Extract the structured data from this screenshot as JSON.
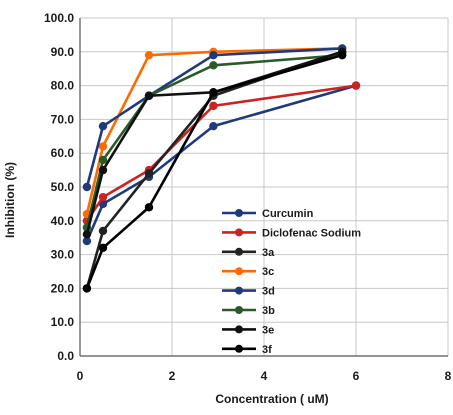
{
  "chart_data": {
    "type": "line",
    "title": "",
    "xlabel": "Concentration ( uM)",
    "ylabel": "Inhibition (%)",
    "xlim": [
      0,
      8
    ],
    "ylim": [
      0,
      100
    ],
    "x_ticks": [
      "0",
      "2",
      "4",
      "6",
      "8"
    ],
    "y_ticks": [
      "0.0",
      "10.0",
      "20.0",
      "30.0",
      "40.0",
      "50.0",
      "60.0",
      "70.0",
      "80.0",
      "90.0",
      "100.0"
    ],
    "grid": "horizontal and vertical",
    "legend_position": "bottom-right",
    "series": [
      {
        "name": "Curcumin",
        "color": "#1f3a7a",
        "x": [
          0.15,
          0.5,
          1.5,
          2.9,
          6.0
        ],
        "y": [
          34,
          45,
          53,
          68,
          80
        ]
      },
      {
        "name": "Diclofenac Sodium",
        "color": "#cc2222",
        "x": [
          0.15,
          0.5,
          1.5,
          2.9,
          6.0
        ],
        "y": [
          40,
          47,
          55,
          74,
          80
        ]
      },
      {
        "name": "3a",
        "color": "#222222",
        "x": [
          0.15,
          0.5,
          1.5,
          2.9,
          5.7
        ],
        "y": [
          20,
          37,
          54,
          77,
          90
        ]
      },
      {
        "name": "3c",
        "color": "#ff6a00",
        "x": [
          0.15,
          0.5,
          1.5,
          2.9,
          5.7
        ],
        "y": [
          42,
          62,
          89,
          90,
          91
        ]
      },
      {
        "name": "3d",
        "color": "#1f3a7a",
        "x": [
          0.15,
          0.5,
          1.5,
          2.9,
          5.7
        ],
        "y": [
          50,
          68,
          77,
          89,
          91
        ]
      },
      {
        "name": "3b",
        "color": "#2a5a2a",
        "x": [
          0.15,
          0.5,
          1.5,
          2.9,
          5.7
        ],
        "y": [
          38,
          58,
          77,
          86,
          89
        ]
      },
      {
        "name": "3e",
        "color": "#111111",
        "x": [
          0.15,
          0.5,
          1.5,
          2.9,
          5.7
        ],
        "y": [
          36,
          55,
          77,
          78,
          90
        ]
      },
      {
        "name": "3f",
        "color": "#000000",
        "x": [
          0.15,
          0.5,
          1.5,
          2.9,
          5.7
        ],
        "y": [
          20,
          32,
          44,
          78,
          89
        ]
      }
    ]
  }
}
